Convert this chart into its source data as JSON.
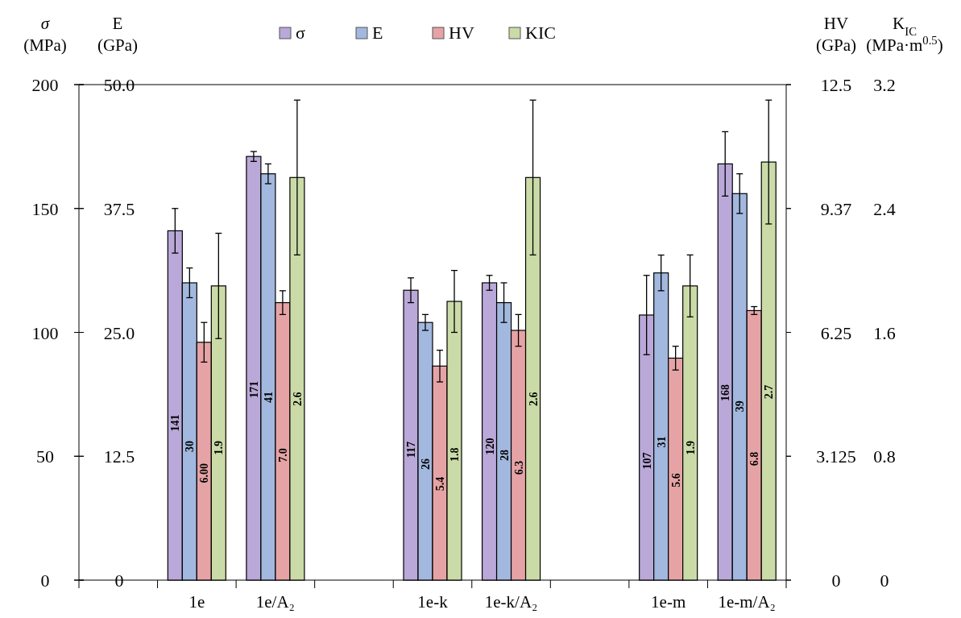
{
  "chart_data": [
    {
      "type": "bar",
      "legend": "top",
      "categories": [
        null,
        "1e",
        "1e/A₂",
        null,
        "1e-k",
        "1e-k/A₂",
        null,
        "1e-m",
        "1e-m/A₂"
      ],
      "ylabel": "σ (MPa)",
      "y2label": "E (GPa)",
      "y3label": "HV (GPa)",
      "ylim": [
        0,
        200
      ],
      "yticks": [
        0,
        50,
        100,
        150,
        200
      ],
      "y2lim": [
        0,
        50
      ],
      "y2ticks": [
        0,
        12.5,
        {
          "value": 25,
          "label": "25.0"
        },
        37.5,
        {
          "value": 50,
          "label": "50.0"
        }
      ],
      "y3lim": [
        0,
        12.5
      ],
      "y3ticks": [
        0,
        3.125,
        6.25,
        {
          "value": 9.375,
          "label": "9.37"
        },
        12.5
      ],
      "series": [
        {
          "name": "σ",
          "color": "#b9a8d8",
          "values": [
            null,
            141,
            171,
            null,
            117,
            120,
            null,
            107,
            168
          ],
          "errors": [
            null,
            9,
            2,
            null,
            5,
            3,
            null,
            16,
            13
          ],
          "value_labels": [
            null,
            "141",
            "171",
            null,
            "117",
            "120",
            null,
            "107",
            "168"
          ]
        },
        {
          "name": "E",
          "color": "#a2b8de",
          "axis": "y2",
          "values": [
            null,
            30,
            41,
            null,
            26,
            28,
            null,
            31,
            39
          ],
          "errors": [
            null,
            1.5,
            1,
            null,
            0.8,
            2,
            null,
            1.8,
            2
          ],
          "value_labels": [
            null,
            "30",
            "41",
            null,
            "26",
            "28",
            null,
            "31",
            "39"
          ]
        },
        {
          "name": "HV",
          "color": "#e6a3a5",
          "axis": "y3",
          "values": [
            null,
            6.0,
            7.0,
            null,
            5.4,
            6.3,
            null,
            5.6,
            6.8
          ],
          "errors": [
            null,
            0.5,
            0.3,
            null,
            0.4,
            0.4,
            null,
            0.3,
            0.1
          ],
          "value_labels": [
            null,
            "6.00",
            "7.0",
            null,
            "5.4",
            "6.3",
            null,
            "5.6",
            "6.8"
          ]
        }
      ]
    },
    {
      "type": "bar",
      "tick_labels": "y",
      "categories": [
        null,
        null,
        null,
        null,
        null,
        null,
        null,
        null,
        null
      ],
      "ylabel": "K$_{IC}$ (MPa·m$^{0.5}$)",
      "ylim": [
        0,
        3.2
      ],
      "yticks": [
        0,
        0.8,
        1.6,
        2.4,
        3.2
      ],
      "series": [
        {
          "name": "KIC",
          "color": "#cbdba8",
          "values": [
            null,
            1.9,
            2.6,
            null,
            1.8,
            2.6,
            null,
            1.9,
            2.7
          ],
          "errors": [
            null,
            0.34,
            0.5,
            null,
            0.2,
            0.5,
            null,
            0.2,
            0.4
          ],
          "value_labels": [
            null,
            "1.9",
            "2.6",
            null,
            "1.8",
            "2.6",
            null,
            "1.9",
            "2.7"
          ]
        }
      ]
    }
  ]
}
